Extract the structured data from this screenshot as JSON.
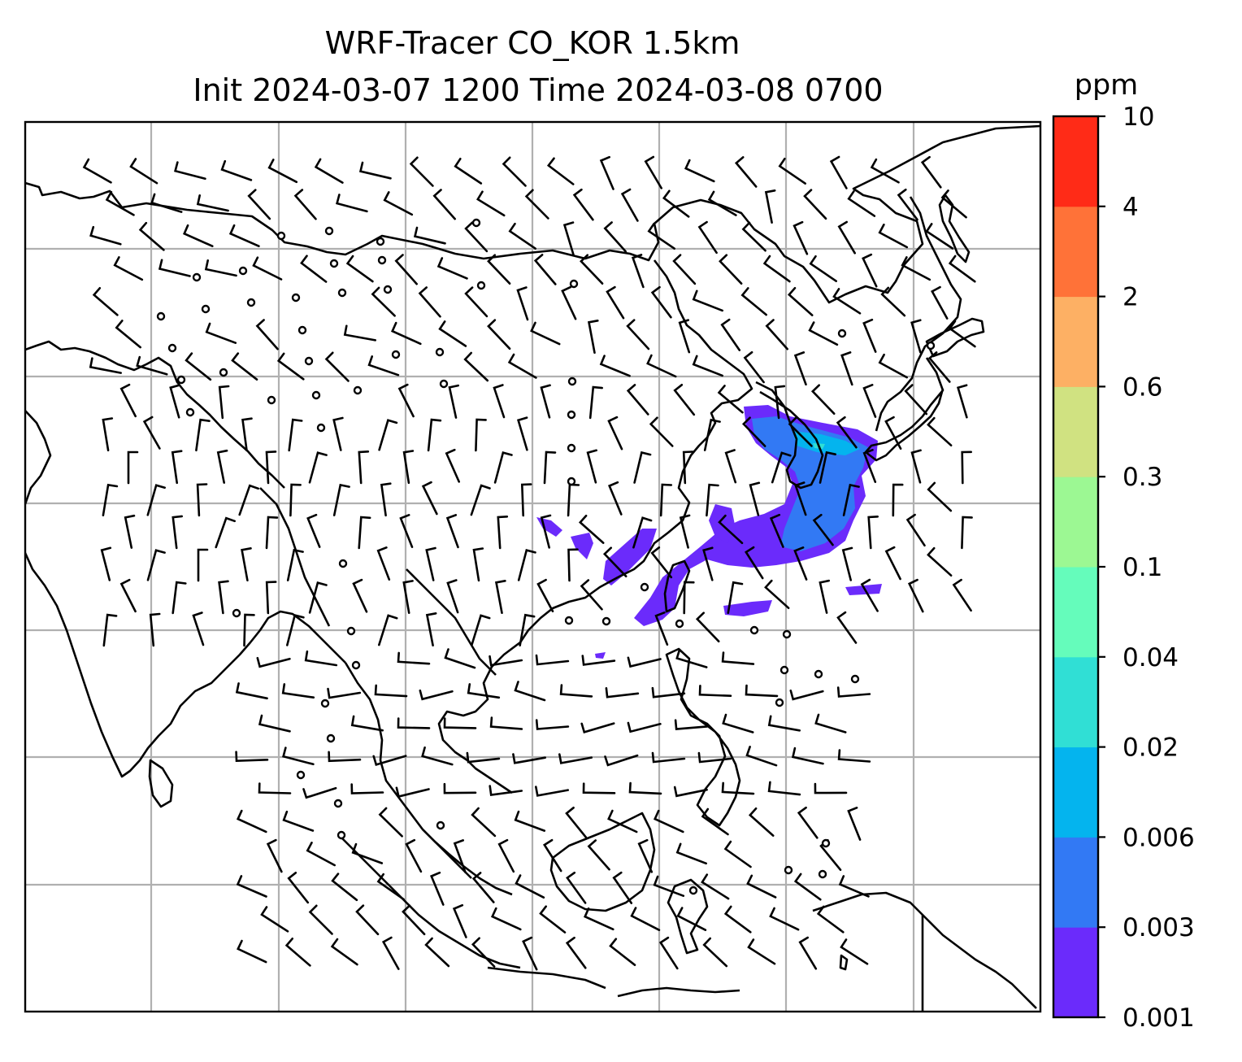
{
  "title": {
    "line1": "WRF-Tracer CO_KOR 1.5km",
    "line2": "Init 2024-03-07 1200 Time 2024-03-08 0700"
  },
  "colorbar": {
    "unit": "ppm",
    "levels": [
      "0.001",
      "0.003",
      "0.006",
      "0.02",
      "0.04",
      "0.1",
      "0.3",
      "0.6",
      "2",
      "4",
      "10"
    ],
    "colors": [
      "#6b2bfb",
      "#3279f4",
      "#04b4ee",
      "#30dfd5",
      "#65fcbb",
      "#9cf893",
      "#d0e281",
      "#fdb064",
      "#ff7238",
      "#ff2b17"
    ]
  },
  "map": {
    "grid": "on",
    "coastline_color": "#000000",
    "plume_colors": {
      "outer": "#6b2bfb",
      "mid": "#3279f4",
      "core": "#04b4ee",
      "spot": "#30dfd5"
    },
    "wind_field": "barbs"
  }
}
